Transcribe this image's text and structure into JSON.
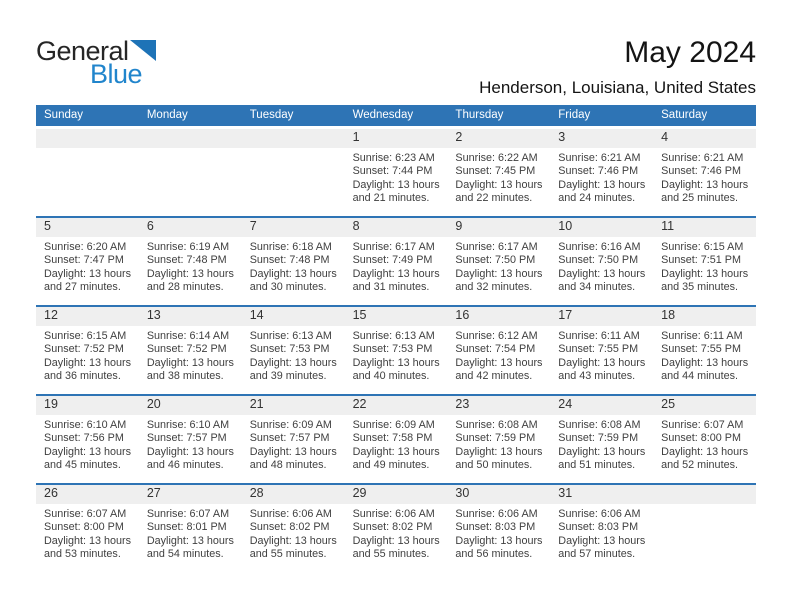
{
  "logo": {
    "part1": "General",
    "part2": "Blue"
  },
  "header": {
    "title": "May 2024",
    "subtitle": "Henderson, Louisiana, United States"
  },
  "colors": {
    "header_blue": "#2E74B5",
    "week_divider_blue": "#2E74B5",
    "day_band_gray": "#EFEFEF",
    "logo_blue": "#2185CC",
    "logo_triangle_blue": "#1E73B7",
    "body_text": "#3F3F3F"
  },
  "calendar": {
    "weekdays": [
      "Sunday",
      "Monday",
      "Tuesday",
      "Wednesday",
      "Thursday",
      "Friday",
      "Saturday"
    ],
    "labels": {
      "sunrise": "Sunrise:",
      "sunset": "Sunset:",
      "daylight": "Daylight:"
    },
    "weeks": [
      [
        null,
        null,
        null,
        {
          "day": "1",
          "sunrise": "6:23 AM",
          "sunset": "7:44 PM",
          "daylight": "13 hours and 21 minutes."
        },
        {
          "day": "2",
          "sunrise": "6:22 AM",
          "sunset": "7:45 PM",
          "daylight": "13 hours and 22 minutes."
        },
        {
          "day": "3",
          "sunrise": "6:21 AM",
          "sunset": "7:46 PM",
          "daylight": "13 hours and 24 minutes."
        },
        {
          "day": "4",
          "sunrise": "6:21 AM",
          "sunset": "7:46 PM",
          "daylight": "13 hours and 25 minutes."
        }
      ],
      [
        {
          "day": "5",
          "sunrise": "6:20 AM",
          "sunset": "7:47 PM",
          "daylight": "13 hours and 27 minutes."
        },
        {
          "day": "6",
          "sunrise": "6:19 AM",
          "sunset": "7:48 PM",
          "daylight": "13 hours and 28 minutes."
        },
        {
          "day": "7",
          "sunrise": "6:18 AM",
          "sunset": "7:48 PM",
          "daylight": "13 hours and 30 minutes."
        },
        {
          "day": "8",
          "sunrise": "6:17 AM",
          "sunset": "7:49 PM",
          "daylight": "13 hours and 31 minutes."
        },
        {
          "day": "9",
          "sunrise": "6:17 AM",
          "sunset": "7:50 PM",
          "daylight": "13 hours and 32 minutes."
        },
        {
          "day": "10",
          "sunrise": "6:16 AM",
          "sunset": "7:50 PM",
          "daylight": "13 hours and 34 minutes."
        },
        {
          "day": "11",
          "sunrise": "6:15 AM",
          "sunset": "7:51 PM",
          "daylight": "13 hours and 35 minutes."
        }
      ],
      [
        {
          "day": "12",
          "sunrise": "6:15 AM",
          "sunset": "7:52 PM",
          "daylight": "13 hours and 36 minutes."
        },
        {
          "day": "13",
          "sunrise": "6:14 AM",
          "sunset": "7:52 PM",
          "daylight": "13 hours and 38 minutes."
        },
        {
          "day": "14",
          "sunrise": "6:13 AM",
          "sunset": "7:53 PM",
          "daylight": "13 hours and 39 minutes."
        },
        {
          "day": "15",
          "sunrise": "6:13 AM",
          "sunset": "7:53 PM",
          "daylight": "13 hours and 40 minutes."
        },
        {
          "day": "16",
          "sunrise": "6:12 AM",
          "sunset": "7:54 PM",
          "daylight": "13 hours and 42 minutes."
        },
        {
          "day": "17",
          "sunrise": "6:11 AM",
          "sunset": "7:55 PM",
          "daylight": "13 hours and 43 minutes."
        },
        {
          "day": "18",
          "sunrise": "6:11 AM",
          "sunset": "7:55 PM",
          "daylight": "13 hours and 44 minutes."
        }
      ],
      [
        {
          "day": "19",
          "sunrise": "6:10 AM",
          "sunset": "7:56 PM",
          "daylight": "13 hours and 45 minutes."
        },
        {
          "day": "20",
          "sunrise": "6:10 AM",
          "sunset": "7:57 PM",
          "daylight": "13 hours and 46 minutes."
        },
        {
          "day": "21",
          "sunrise": "6:09 AM",
          "sunset": "7:57 PM",
          "daylight": "13 hours and 48 minutes."
        },
        {
          "day": "22",
          "sunrise": "6:09 AM",
          "sunset": "7:58 PM",
          "daylight": "13 hours and 49 minutes."
        },
        {
          "day": "23",
          "sunrise": "6:08 AM",
          "sunset": "7:59 PM",
          "daylight": "13 hours and 50 minutes."
        },
        {
          "day": "24",
          "sunrise": "6:08 AM",
          "sunset": "7:59 PM",
          "daylight": "13 hours and 51 minutes."
        },
        {
          "day": "25",
          "sunrise": "6:07 AM",
          "sunset": "8:00 PM",
          "daylight": "13 hours and 52 minutes."
        }
      ],
      [
        {
          "day": "26",
          "sunrise": "6:07 AM",
          "sunset": "8:00 PM",
          "daylight": "13 hours and 53 minutes."
        },
        {
          "day": "27",
          "sunrise": "6:07 AM",
          "sunset": "8:01 PM",
          "daylight": "13 hours and 54 minutes."
        },
        {
          "day": "28",
          "sunrise": "6:06 AM",
          "sunset": "8:02 PM",
          "daylight": "13 hours and 55 minutes."
        },
        {
          "day": "29",
          "sunrise": "6:06 AM",
          "sunset": "8:02 PM",
          "daylight": "13 hours and 55 minutes."
        },
        {
          "day": "30",
          "sunrise": "6:06 AM",
          "sunset": "8:03 PM",
          "daylight": "13 hours and 56 minutes."
        },
        {
          "day": "31",
          "sunrise": "6:06 AM",
          "sunset": "8:03 PM",
          "daylight": "13 hours and 57 minutes."
        },
        null
      ]
    ]
  }
}
